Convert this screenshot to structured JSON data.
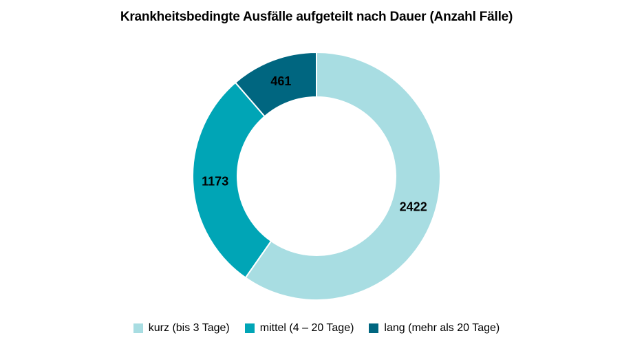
{
  "chart_data": {
    "type": "pie",
    "title": "Krankheitsbedingte Ausfälle aufgeteilt nach Dauer (Anzahl Fälle)",
    "hole": "donut",
    "legend_position": "bottom",
    "categories": [
      "kurz (bis 3 Tage)",
      "mittel (4 – 20 Tage)",
      "lang (mehr als 20 Tage)"
    ],
    "values": [
      2422,
      1173,
      461
    ],
    "colors": [
      "#a8dde2",
      "#00a5b6",
      "#006680"
    ]
  }
}
